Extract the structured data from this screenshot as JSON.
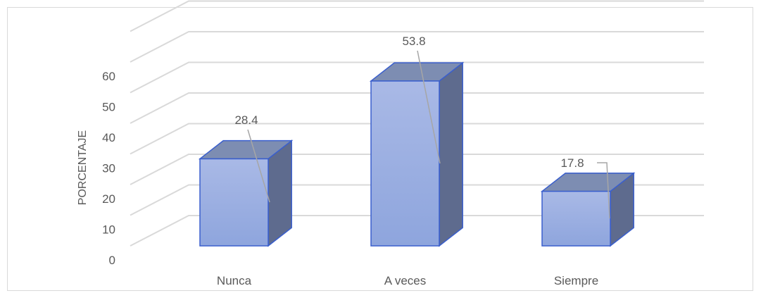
{
  "chart_data": {
    "type": "bar",
    "style": "3d-column",
    "categories": [
      "Nunca",
      "A veces",
      "Siempre"
    ],
    "values": [
      28.4,
      53.8,
      17.8
    ],
    "data_labels": [
      "28.4",
      "53.8",
      "17.8"
    ],
    "ylabel": "PORCENTAJE",
    "ylim": [
      0,
      70
    ],
    "yticks": [
      "0",
      "10",
      "20",
      "30",
      "40",
      "50",
      "60"
    ],
    "grid": true,
    "colors": {
      "front_top": "#a9b9e6",
      "front_bottom": "#8ea5dd",
      "top_face": "#7d8db2",
      "side_face": "#5e6b8e",
      "edge": "#3a5fcd",
      "grid": "#d9d9d9",
      "text": "#595959",
      "leader": "#a6a6a6"
    }
  }
}
